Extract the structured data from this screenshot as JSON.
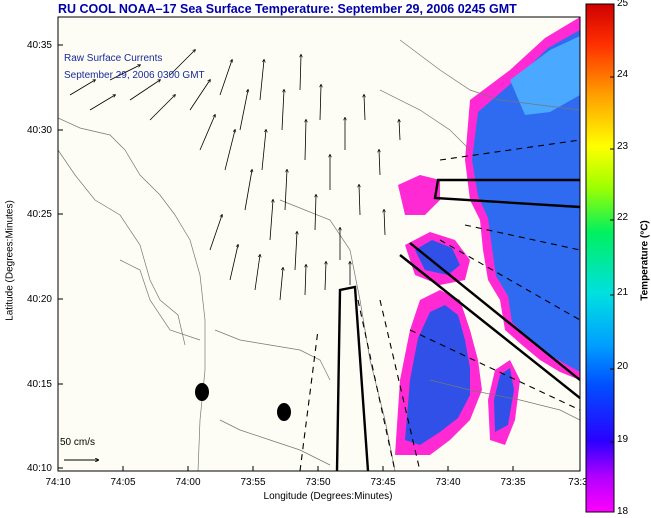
{
  "title": "RU COOL  NOAA–17  Sea Surface Temperature:  September 29, 2006 0245 GMT",
  "xlabel": "Longitude (Degrees:Minutes)",
  "ylabel": "Latitude (Degrees:Minutes)",
  "x_ticks": [
    "74:10",
    "74:05",
    "74:00",
    "73:55",
    "73:50",
    "73:45",
    "73:40",
    "73:35",
    "73:3"
  ],
  "y_ticks": [
    "40:35",
    "40:30",
    "40:25",
    "40:20",
    "40:15",
    "40:10"
  ],
  "legend": {
    "line1": "Raw Surface Currents",
    "line2": "September 29, 2006 0300 GMT"
  },
  "scale_arrow_label": "50 cm/s",
  "colorbar": {
    "label": "Temperature (°C)",
    "ticks": [
      "25",
      "24",
      "23",
      "22",
      "21",
      "20",
      "19",
      "18"
    ],
    "min": 18,
    "max": 25
  },
  "colors": {
    "title": "#0000aa",
    "land": "#fdfdf6",
    "sst_warm": "#2f6bf0",
    "sst_cold": "#ff00ff"
  }
}
